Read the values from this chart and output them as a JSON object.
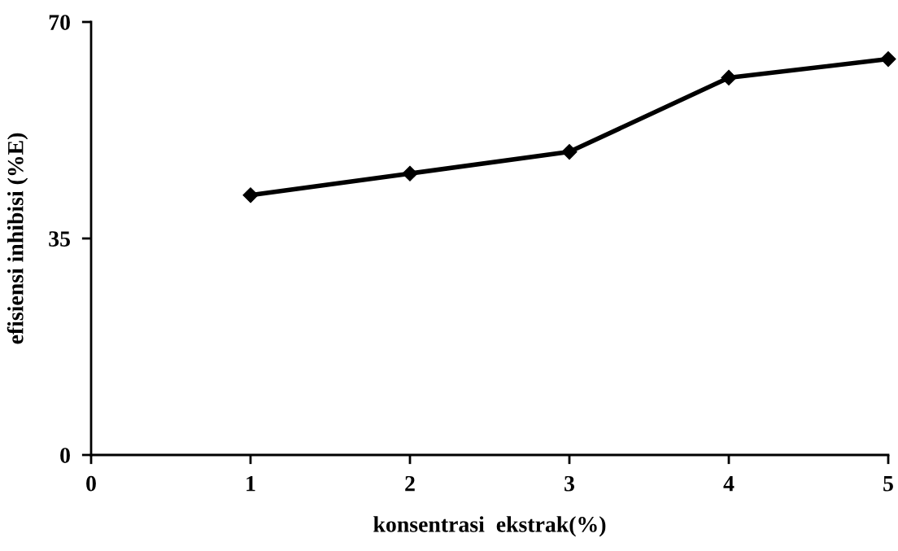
{
  "chart_data": {
    "type": "line",
    "xlabel": "konsentrasi  ekstrak(%)",
    "ylabel": "efisiensi inhibisi (%E)",
    "x": [
      1,
      2,
      3,
      4,
      5
    ],
    "series": [
      {
        "color": "#000000",
        "values": [
          42,
          45.5,
          49,
          61,
          64
        ]
      }
    ],
    "xlim": [
      0,
      5
    ],
    "xticks": [
      0,
      1,
      2,
      3,
      4,
      5
    ],
    "ylim": [
      0,
      70
    ],
    "yticks": [
      0,
      35,
      70
    ],
    "grid": false,
    "legend": false,
    "marker": "diamond",
    "line_style": "solid"
  }
}
